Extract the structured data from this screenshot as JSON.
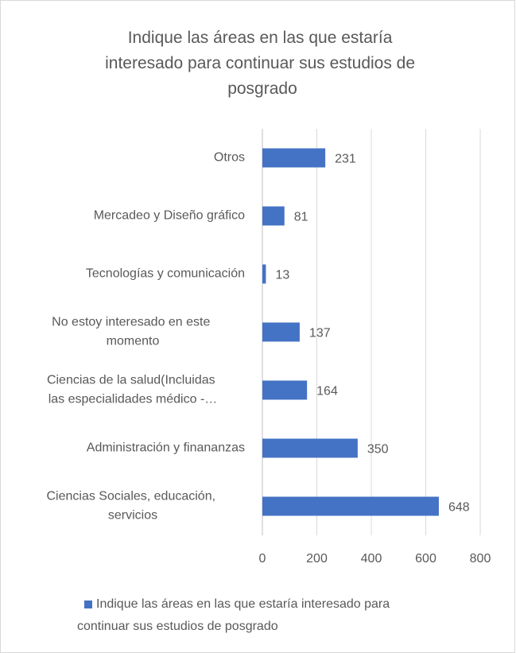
{
  "chart_data": {
    "type": "bar",
    "orientation": "horizontal",
    "title": "Indique las áreas en las que estaría interesado para continuar sus estudios de posgrado",
    "categories": [
      "Otros",
      "Mercadeo y Diseño gráfico",
      "Tecnologías y comunicación",
      "No estoy interesado en este momento",
      "Ciencias de la salud(Incluidas las especialidades médico -…",
      "Administración y finananzas",
      "Ciencias Sociales, educación, servicios"
    ],
    "series": [
      {
        "name": "Indique las áreas en las que estaría interesado para continuar sus estudios de posgrado",
        "color": "#4472c4",
        "values": [
          231,
          81,
          13,
          137,
          164,
          350,
          648
        ]
      }
    ],
    "xlim": [
      0,
      800
    ],
    "xticks": [
      0,
      200,
      400,
      600,
      800
    ],
    "grid": true,
    "legend": "bottom"
  }
}
